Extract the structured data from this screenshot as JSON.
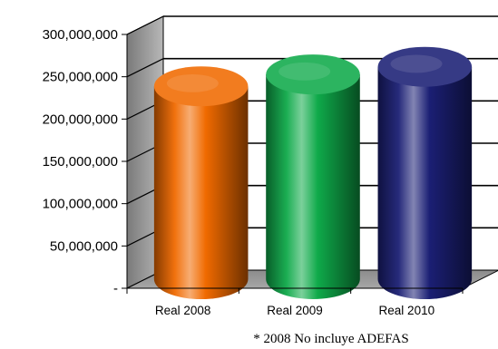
{
  "chart_data": {
    "type": "bar",
    "style": "3d-cylinder",
    "categories": [
      "Real 2008",
      "Real 2009",
      "Real 2010"
    ],
    "values": [
      228000000,
      242000000,
      251000000
    ],
    "ylim": [
      0,
      300000000
    ],
    "yticks": [
      0,
      50000000,
      100000000,
      150000000,
      200000000,
      250000000,
      300000000
    ],
    "ytick_labels": [
      "-",
      "50,000,000",
      "100,000,000",
      "150,000,000",
      "200,000,000",
      "250,000,000",
      "300,000,000"
    ],
    "bar_colors": [
      "#f06a00",
      "#0faa4a",
      "#1b1f74"
    ],
    "grid": true,
    "legend": "none",
    "footnote": "* 2008 No incluye ADEFAS"
  }
}
